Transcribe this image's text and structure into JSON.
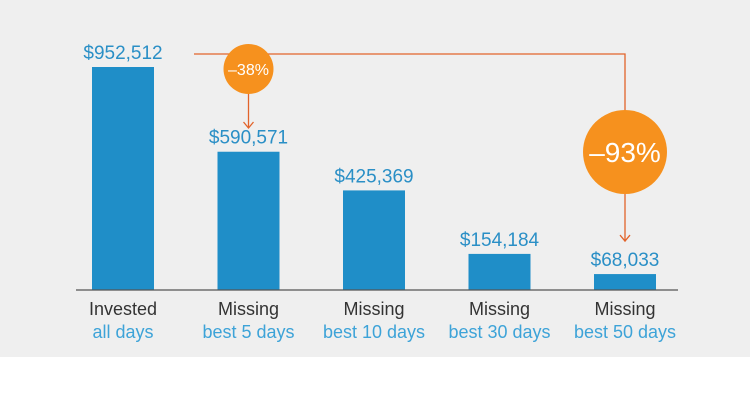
{
  "colors": {
    "bar": "#1f8ec8",
    "value_label": "#2a8fc6",
    "category_primary": "#333333",
    "category_secondary": "#3da3d8",
    "badge": "#f6911e",
    "connector": "#e2632a",
    "axis": "#555555",
    "background": "#efefef"
  },
  "chart_data": {
    "type": "bar",
    "title": "",
    "xlabel": "",
    "ylabel": "",
    "ylim": [
      0,
      952512
    ],
    "grid": false,
    "categories": [
      {
        "line1": "Invested",
        "line2": "all days"
      },
      {
        "line1": "Missing",
        "line2": "best 5 days"
      },
      {
        "line1": "Missing",
        "line2": "best 10 days"
      },
      {
        "line1": "Missing",
        "line2": "best 30 days"
      },
      {
        "line1": "Missing",
        "line2": "best 50 days"
      }
    ],
    "values": [
      952512,
      590571,
      425369,
      154184,
      68033
    ],
    "value_labels": [
      "$952,512",
      "$590,571",
      "$425,369",
      "$154,184",
      "$68,033"
    ],
    "annotations": [
      {
        "label": "–38%",
        "from_index": 0,
        "to_index": 1
      },
      {
        "label": "–93%",
        "from_index": 0,
        "to_index": 4
      }
    ]
  }
}
